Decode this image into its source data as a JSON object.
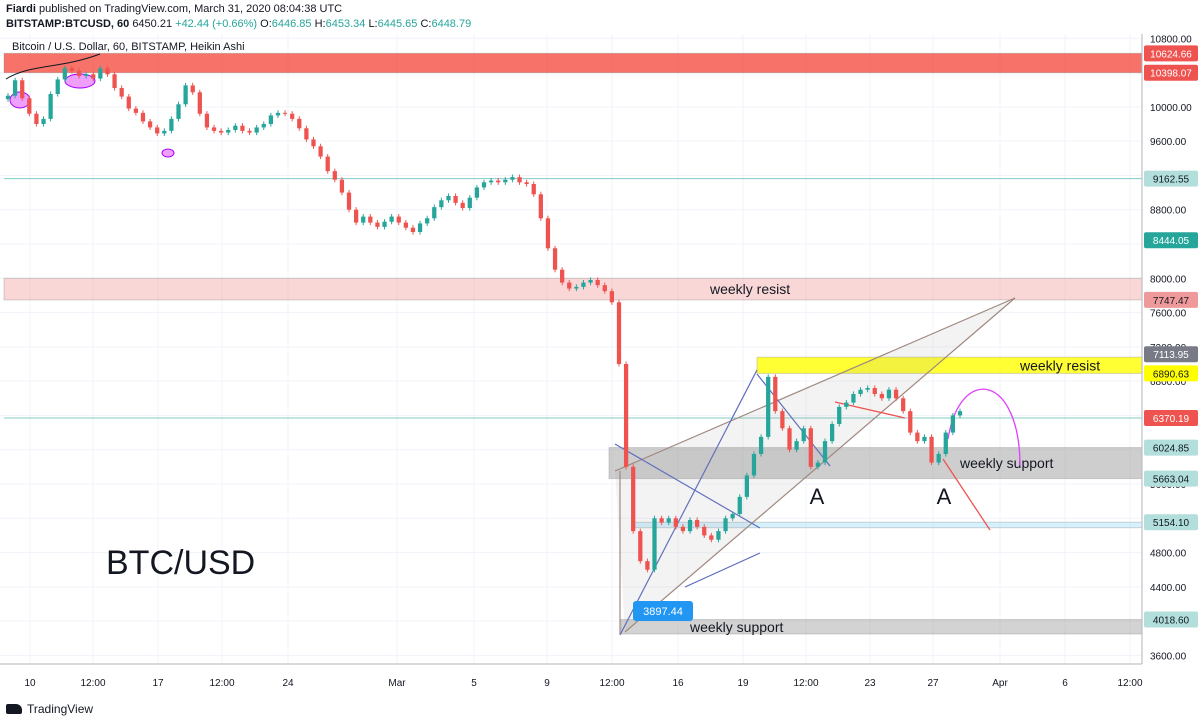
{
  "header": {
    "author": "Fiardi",
    "published_text": "published on TradingView.com, March 31, 2020 08:04:38 UTC",
    "symbol_line": "BITSTAMP:BTCUSD, 60",
    "last": "6450.21",
    "change": "+42.44 (+0.66%)",
    "o_label": "O:",
    "o": "6446.85",
    "h_label": "H:",
    "h": "6453.34",
    "l_label": "L:",
    "l": "6445.65",
    "c_label": "C:",
    "c": "6448.79"
  },
  "footer": {
    "brand": "TradingView"
  },
  "chart_data": {
    "type": "candlestick",
    "title": "Bitcoin / U.S. Dollar, 60, BITSTAMP, Heikin Ashi",
    "watermark": "BTC/USD",
    "ylim": [
      3500,
      10850
    ],
    "y_ticks": [
      3600,
      4000,
      4400,
      4800,
      5200,
      5600,
      6000,
      6400,
      6800,
      7200,
      7600,
      8000,
      8400,
      8800,
      9200,
      9600,
      10000,
      10400,
      10800
    ],
    "x_ticks": [
      "10",
      "12:00",
      "17",
      "12:00",
      "24",
      "Mar",
      "5",
      "9",
      "12:00",
      "16",
      "19",
      "12:00",
      "23",
      "27",
      "Apr",
      "6",
      "12:00"
    ],
    "price_labels": [
      {
        "value": 10624.66,
        "text": "10624.66",
        "color": "#ef5350"
      },
      {
        "value": 10398.07,
        "text": "10398.07",
        "color": "#ef5350"
      },
      {
        "value": 9162.55,
        "text": "9162.55",
        "color": "#b2dfdb"
      },
      {
        "value": 8444.05,
        "text": "8444.05",
        "color": "#26a69a"
      },
      {
        "value": 7747.47,
        "text": "7747.47",
        "color": "#ef9a9a"
      },
      {
        "value": 7113.95,
        "text": "7113.95",
        "color": "#787b86"
      },
      {
        "value": 6890.63,
        "text": "6890.63",
        "color": "#ffff00"
      },
      {
        "value": 6370.19,
        "text": "6370.19",
        "color": "#ef5350"
      },
      {
        "value": 6024.85,
        "text": "6024.85",
        "color": "#b2dfdb"
      },
      {
        "value": 5663.04,
        "text": "5663.04",
        "color": "#b2dfdb"
      },
      {
        "value": 5154.1,
        "text": "5154.10",
        "color": "#b2dfdb"
      },
      {
        "value": 4018.6,
        "text": "4018.60",
        "color": "#b2dfdb"
      }
    ],
    "zones": [
      {
        "label": "",
        "low": 10398.07,
        "high": 10624.66,
        "color": "#f44336"
      },
      {
        "label": "weekly resist",
        "low": 7747.47,
        "high": 8000,
        "color": "#ef9a9a"
      },
      {
        "label": "weekly resist",
        "low": 6890.63,
        "high": 7080,
        "color": "#ffff00"
      },
      {
        "label": "weekly support",
        "low": 5663.04,
        "high": 6024.85,
        "color": "#9e9e9e"
      },
      {
        "label": "",
        "low": 5090,
        "high": 5154.1,
        "color": "#b3e5fc"
      },
      {
        "label": "weekly support",
        "low": 3850,
        "high": 4018.6,
        "color": "#9e9e9e"
      }
    ],
    "annotations": [
      "A",
      "A"
    ],
    "low_marker": "3897.44",
    "hourly_closes": [
      10130,
      10310,
      10100,
      9920,
      9800,
      9860,
      10150,
      10320,
      10450,
      10420,
      10360,
      10380,
      10330,
      10450,
      10380,
      10220,
      10120,
      9980,
      9930,
      9830,
      9760,
      9690,
      9720,
      9860,
      10030,
      10250,
      10170,
      9920,
      9760,
      9720,
      9700,
      9730,
      9780,
      9720,
      9700,
      9760,
      9800,
      9900,
      9930,
      9920,
      9860,
      9750,
      9620,
      9540,
      9420,
      9250,
      9150,
      9000,
      8800,
      8650,
      8720,
      8650,
      8600,
      8660,
      8720,
      8650,
      8590,
      8540,
      8640,
      8700,
      8830,
      8910,
      8960,
      8880,
      8820,
      8940,
      9060,
      9120,
      9140,
      9120,
      9150,
      9180,
      9120,
      9100,
      8980,
      8700,
      8350,
      8100,
      7950,
      7880,
      7900,
      7950,
      7980,
      7920,
      7850,
      7720,
      7000,
      5800,
      5050,
      4700,
      4600,
      5200,
      5150,
      5200,
      5100,
      5050,
      5180,
      5100,
      5000,
      4950,
      5050,
      5200,
      5250,
      5450,
      5700,
      5950,
      6150,
      6850,
      6450,
      6250,
      6000,
      6100,
      6250,
      5800,
      5850,
      6100,
      6300,
      6500,
      6550,
      6650,
      6700,
      6720,
      6650,
      6600,
      6700,
      6600,
      6450,
      6200,
      6100,
      6150,
      5850,
      5950,
      6200,
      6400,
      6450
    ]
  }
}
